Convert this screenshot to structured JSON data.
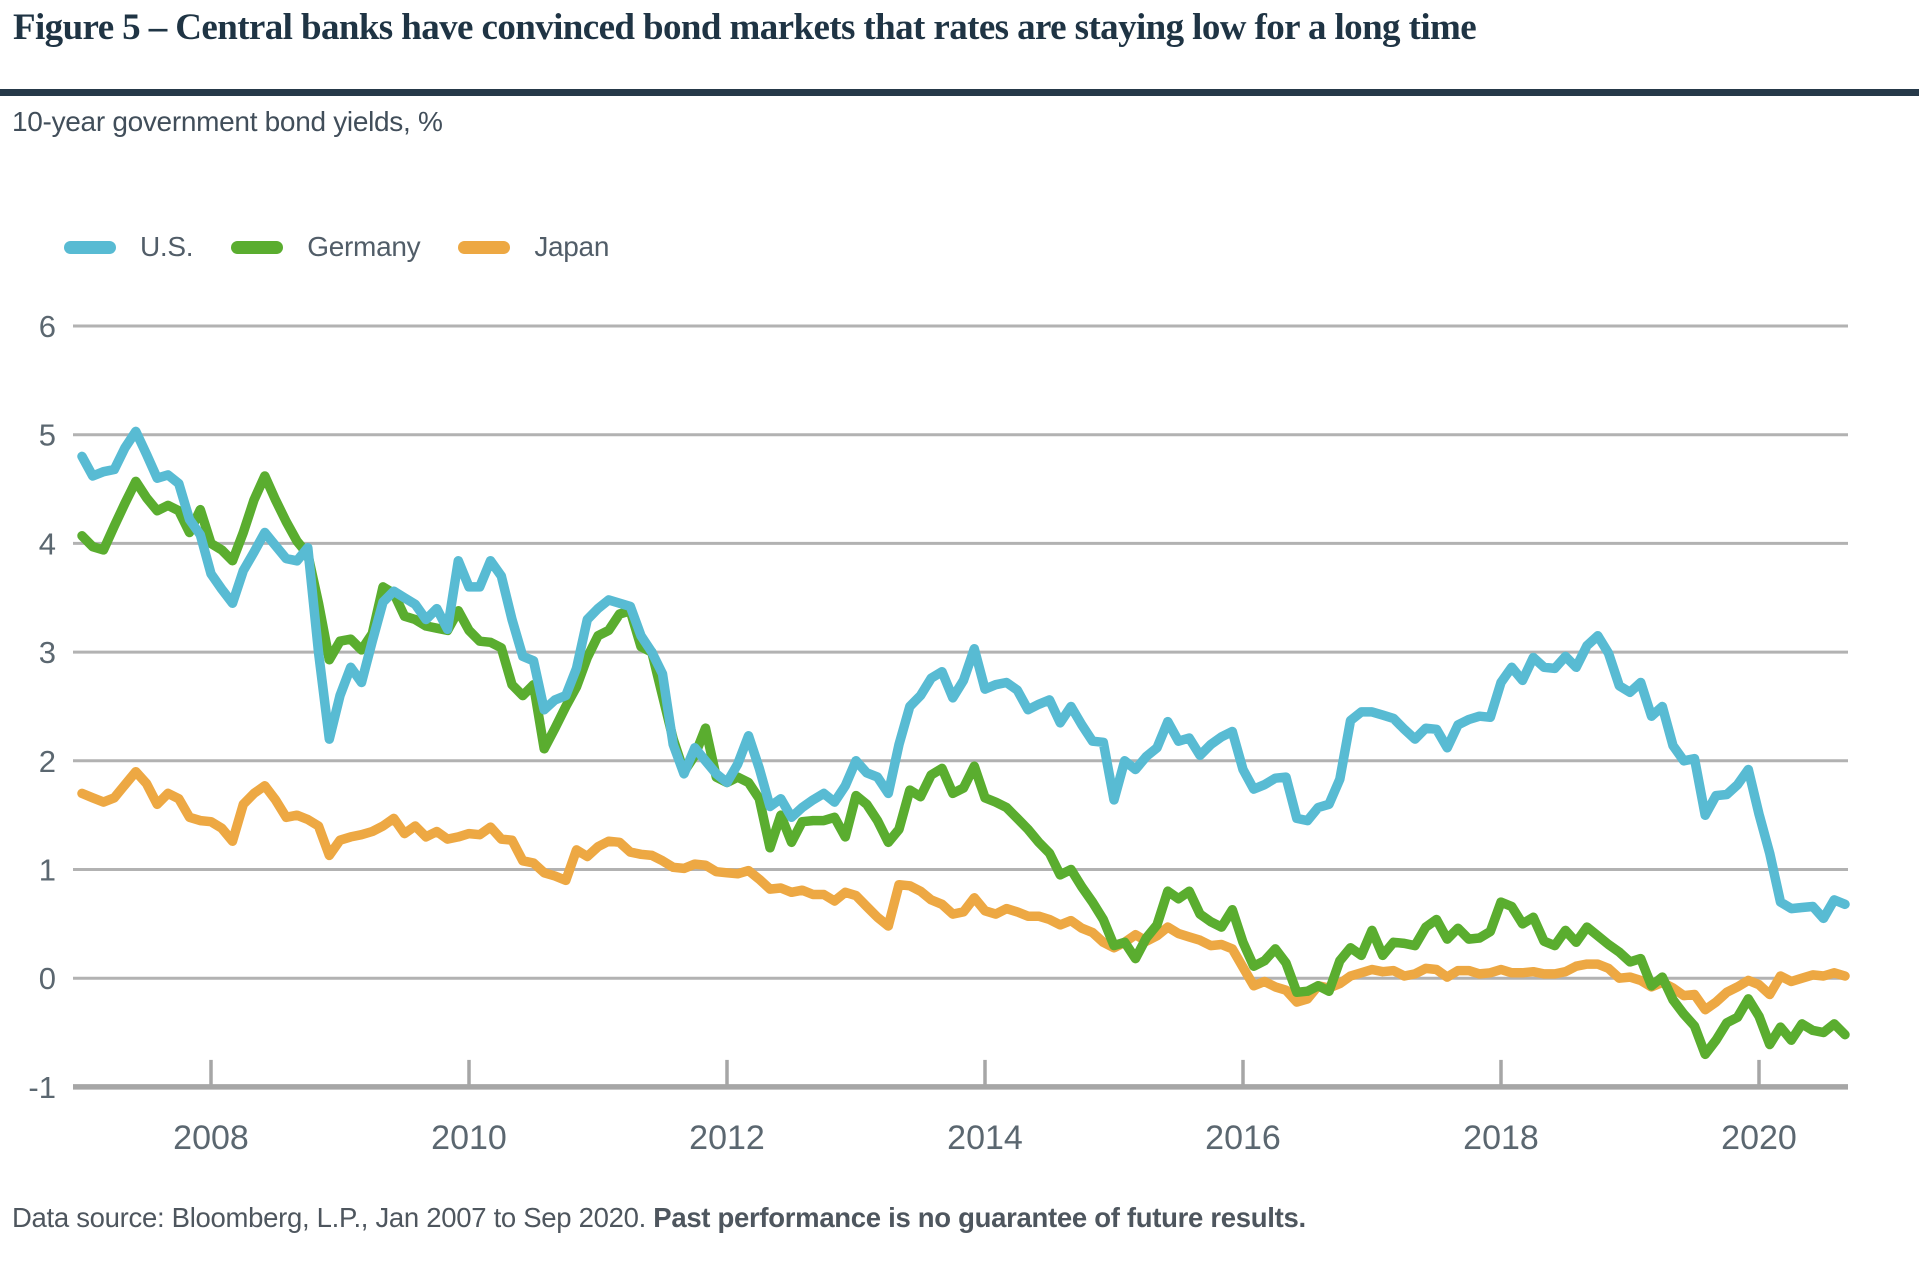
{
  "header": {
    "title": "Figure 5 – Central banks have convinced bond markets that rates are staying low for a long time"
  },
  "subtitle": "10-year government bond yields, %",
  "legend": {
    "items": [
      {
        "label": "U.S.",
        "color": "#58bbd3"
      },
      {
        "label": "Germany",
        "color": "#5aad2f"
      },
      {
        "label": "Japan",
        "color": "#eda843"
      }
    ]
  },
  "footer": {
    "source": "Data source: Bloomberg, L.P., Jan 2007 to Sep 2020. ",
    "disclaimer": "Past performance is no guarantee of future results."
  },
  "colors": {
    "gridline": "#b2b2b2",
    "axis_line": "#a6a6a6",
    "axis_label": "#5b6770",
    "title_navy": "#1f3444"
  },
  "chart_data": {
    "type": "line",
    "title": "10-year government bond yields, %",
    "xlabel": "",
    "ylabel": "",
    "x_start_year": 2007.0,
    "x_step_years": 0.08333333,
    "x_range_label": "Jan 2007 to Sep 2020",
    "ylim": [
      -1,
      6
    ],
    "y_ticks": [
      6,
      5,
      4,
      3,
      2,
      1,
      0,
      -1
    ],
    "x_ticks": [
      2008,
      2010,
      2012,
      2014,
      2016,
      2018,
      2020
    ],
    "grid": "horizontal",
    "legend_position": "top-left",
    "series": [
      {
        "name": "Japan",
        "color": "#eda843",
        "values": [
          1.7,
          1.66,
          1.62,
          1.66,
          1.78,
          1.9,
          1.79,
          1.6,
          1.7,
          1.65,
          1.48,
          1.45,
          1.44,
          1.38,
          1.26,
          1.6,
          1.7,
          1.77,
          1.64,
          1.48,
          1.5,
          1.46,
          1.4,
          1.13,
          1.27,
          1.3,
          1.32,
          1.35,
          1.4,
          1.47,
          1.33,
          1.4,
          1.3,
          1.35,
          1.28,
          1.3,
          1.33,
          1.32,
          1.39,
          1.28,
          1.27,
          1.08,
          1.06,
          0.97,
          0.94,
          0.9,
          1.18,
          1.12,
          1.21,
          1.26,
          1.25,
          1.16,
          1.14,
          1.13,
          1.08,
          1.02,
          1.01,
          1.05,
          1.04,
          0.98,
          0.97,
          0.96,
          0.99,
          0.91,
          0.82,
          0.83,
          0.79,
          0.81,
          0.77,
          0.77,
          0.71,
          0.79,
          0.76,
          0.66,
          0.56,
          0.48,
          0.86,
          0.85,
          0.8,
          0.72,
          0.68,
          0.59,
          0.61,
          0.74,
          0.62,
          0.59,
          0.64,
          0.61,
          0.57,
          0.57,
          0.54,
          0.49,
          0.53,
          0.46,
          0.42,
          0.33,
          0.28,
          0.33,
          0.4,
          0.34,
          0.39,
          0.47,
          0.41,
          0.38,
          0.35,
          0.3,
          0.31,
          0.27,
          0.1,
          -0.07,
          -0.03,
          -0.08,
          -0.11,
          -0.22,
          -0.19,
          -0.07,
          -0.09,
          -0.05,
          0.02,
          0.05,
          0.08,
          0.06,
          0.07,
          0.02,
          0.04,
          0.09,
          0.08,
          0.01,
          0.07,
          0.07,
          0.04,
          0.05,
          0.08,
          0.05,
          0.05,
          0.06,
          0.04,
          0.04,
          0.06,
          0.11,
          0.13,
          0.13,
          0.09,
          0.0,
          0.01,
          -0.02,
          -0.08,
          -0.04,
          -0.09,
          -0.16,
          -0.15,
          -0.29,
          -0.22,
          -0.13,
          -0.08,
          -0.02,
          -0.06,
          -0.15,
          0.02,
          -0.03,
          0.0,
          0.03,
          0.02,
          0.05,
          0.02
        ]
      },
      {
        "name": "Germany",
        "color": "#5aad2f",
        "values": [
          4.07,
          3.97,
          3.94,
          4.16,
          4.37,
          4.57,
          4.42,
          4.3,
          4.35,
          4.3,
          4.1,
          4.31,
          4.0,
          3.94,
          3.84,
          4.1,
          4.4,
          4.62,
          4.4,
          4.2,
          4.02,
          3.9,
          3.45,
          2.93,
          3.1,
          3.12,
          3.02,
          3.17,
          3.6,
          3.54,
          3.33,
          3.3,
          3.24,
          3.22,
          3.2,
          3.38,
          3.2,
          3.1,
          3.09,
          3.04,
          2.7,
          2.6,
          2.7,
          2.11,
          2.3,
          2.5,
          2.68,
          2.95,
          3.15,
          3.2,
          3.35,
          3.38,
          3.05,
          3.0,
          2.6,
          2.2,
          1.9,
          2.05,
          2.3,
          1.85,
          1.8,
          1.85,
          1.8,
          1.65,
          1.2,
          1.5,
          1.25,
          1.44,
          1.45,
          1.45,
          1.48,
          1.3,
          1.68,
          1.6,
          1.45,
          1.25,
          1.37,
          1.73,
          1.67,
          1.87,
          1.93,
          1.7,
          1.75,
          1.95,
          1.66,
          1.62,
          1.57,
          1.47,
          1.37,
          1.25,
          1.15,
          0.95,
          1.0,
          0.84,
          0.7,
          0.54,
          0.3,
          0.33,
          0.18,
          0.37,
          0.49,
          0.8,
          0.73,
          0.8,
          0.59,
          0.52,
          0.47,
          0.63,
          0.33,
          0.11,
          0.16,
          0.27,
          0.14,
          -0.13,
          -0.12,
          -0.07,
          -0.12,
          0.16,
          0.28,
          0.21,
          0.44,
          0.21,
          0.33,
          0.32,
          0.3,
          0.47,
          0.54,
          0.36,
          0.46,
          0.36,
          0.37,
          0.43,
          0.7,
          0.66,
          0.5,
          0.56,
          0.34,
          0.3,
          0.44,
          0.33,
          0.47,
          0.39,
          0.31,
          0.24,
          0.15,
          0.18,
          -0.07,
          0.01,
          -0.2,
          -0.33,
          -0.44,
          -0.7,
          -0.57,
          -0.41,
          -0.36,
          -0.19,
          -0.35,
          -0.61,
          -0.45,
          -0.57,
          -0.42,
          -0.48,
          -0.5,
          -0.42,
          -0.52
        ]
      },
      {
        "name": "U.S.",
        "color": "#58bbd3",
        "values": [
          4.8,
          4.62,
          4.66,
          4.68,
          4.88,
          5.03,
          4.82,
          4.6,
          4.63,
          4.55,
          4.22,
          4.08,
          3.72,
          3.58,
          3.45,
          3.75,
          3.92,
          4.1,
          3.98,
          3.86,
          3.84,
          3.96,
          3.0,
          2.2,
          2.6,
          2.86,
          2.72,
          3.1,
          3.46,
          3.56,
          3.5,
          3.44,
          3.3,
          3.4,
          3.21,
          3.84,
          3.6,
          3.6,
          3.84,
          3.7,
          3.3,
          2.96,
          2.92,
          2.47,
          2.56,
          2.6,
          2.85,
          3.3,
          3.4,
          3.48,
          3.45,
          3.42,
          3.15,
          3.0,
          2.8,
          2.15,
          1.88,
          2.12,
          2.0,
          1.88,
          1.8,
          1.97,
          2.23,
          1.93,
          1.58,
          1.65,
          1.48,
          1.57,
          1.64,
          1.7,
          1.62,
          1.77,
          2.0,
          1.89,
          1.85,
          1.7,
          2.15,
          2.5,
          2.6,
          2.76,
          2.82,
          2.58,
          2.74,
          3.03,
          2.66,
          2.7,
          2.72,
          2.65,
          2.47,
          2.52,
          2.56,
          2.35,
          2.5,
          2.33,
          2.18,
          2.17,
          1.64,
          2.0,
          1.92,
          2.04,
          2.12,
          2.36,
          2.18,
          2.21,
          2.05,
          2.15,
          2.22,
          2.27,
          1.92,
          1.74,
          1.78,
          1.84,
          1.85,
          1.47,
          1.45,
          1.57,
          1.6,
          1.83,
          2.37,
          2.45,
          2.45,
          2.42,
          2.39,
          2.29,
          2.2,
          2.3,
          2.29,
          2.12,
          2.33,
          2.38,
          2.41,
          2.4,
          2.72,
          2.86,
          2.74,
          2.95,
          2.86,
          2.85,
          2.96,
          2.86,
          3.06,
          3.15,
          2.99,
          2.69,
          2.63,
          2.72,
          2.41,
          2.5,
          2.14,
          2.0,
          2.02,
          1.5,
          1.68,
          1.69,
          1.78,
          1.92,
          1.51,
          1.15,
          0.7,
          0.64,
          0.65,
          0.66,
          0.55,
          0.72,
          0.68
        ]
      }
    ]
  }
}
